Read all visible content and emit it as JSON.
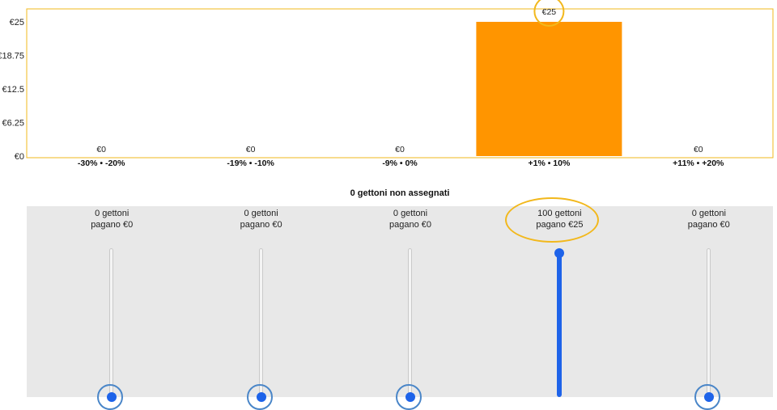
{
  "chart_data": {
    "type": "bar",
    "categories": [
      "-30% • -20%",
      "-19% • -10%",
      "-9% • 0%",
      "+1% • 10%",
      "+11% • +20%"
    ],
    "values": [
      0,
      0,
      0,
      25,
      0
    ],
    "value_labels": [
      "€0",
      "€0",
      "€0",
      "€25",
      "€0"
    ],
    "yticks": [
      0,
      6.25,
      12.5,
      18.75,
      25
    ],
    "ytick_labels": [
      "€0",
      "€6.25",
      "€12.5",
      "€18.75",
      "€25"
    ],
    "ylim": [
      0,
      25
    ],
    "title": "",
    "xlabel": "",
    "ylabel": "",
    "grid": false,
    "bar_color": "#ff9500",
    "frame_color": "#f2b81c",
    "highlighted_category": 3
  },
  "unassigned_label": "0 gettoni non assegnati",
  "sliders": [
    {
      "line1": "0 gettoni",
      "line2": "pagano €0",
      "tokens": 0,
      "focused": true
    },
    {
      "line1": "0 gettoni",
      "line2": "pagano €0",
      "tokens": 0,
      "focused": true
    },
    {
      "line1": "0 gettoni",
      "line2": "pagano €0",
      "tokens": 0,
      "focused": true
    },
    {
      "line1": "100 gettoni",
      "line2": "pagano €25",
      "tokens": 100,
      "focused": false,
      "highlighted": true
    },
    {
      "line1": "0 gettoni",
      "line2": "pagano €0",
      "tokens": 0,
      "focused": true
    }
  ],
  "slider_max": 100,
  "colors": {
    "accent": "#1e63e9",
    "panel": "#e8e8e8",
    "highlight": "#f2b81c"
  }
}
